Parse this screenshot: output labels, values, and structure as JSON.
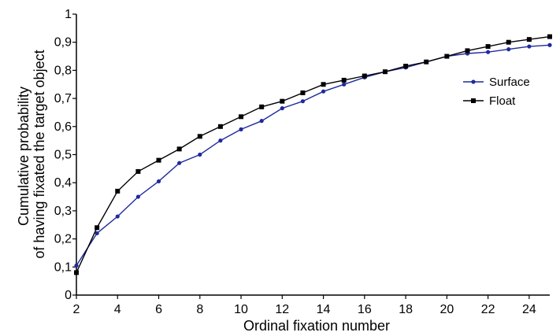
{
  "chart_data": {
    "type": "line",
    "title": "",
    "xlabel": "Ordinal fixation number",
    "ylabel": [
      "Cumulative probability",
      "of having fixated the target object"
    ],
    "x": [
      2,
      3,
      4,
      5,
      6,
      7,
      8,
      9,
      10,
      11,
      12,
      13,
      14,
      15,
      16,
      17,
      18,
      19,
      20,
      21,
      22,
      23,
      24,
      25
    ],
    "xlim": [
      2,
      25
    ],
    "ylim": [
      0,
      1
    ],
    "xticks": [
      "2",
      "4",
      "6",
      "8",
      "10",
      "12",
      "14",
      "16",
      "18",
      "20",
      "22",
      "24"
    ],
    "yticks": [
      "0",
      "0,1",
      "0,2",
      "0,3",
      "0,4",
      "0,5",
      "0,6",
      "0,7",
      "0,8",
      "0,9",
      "1"
    ],
    "grid": false,
    "legend_position": "right",
    "series": [
      {
        "name": "Surface",
        "color": "#1f2a9c",
        "marker": "circle",
        "values": [
          0.105,
          0.22,
          0.28,
          0.35,
          0.405,
          0.47,
          0.5,
          0.55,
          0.59,
          0.62,
          0.665,
          0.69,
          0.725,
          0.75,
          0.775,
          0.795,
          0.81,
          0.83,
          0.85,
          0.86,
          0.865,
          0.875,
          0.885,
          0.89
        ]
      },
      {
        "name": "Float",
        "color": "#000000",
        "marker": "square",
        "values": [
          0.08,
          0.24,
          0.37,
          0.44,
          0.48,
          0.52,
          0.565,
          0.6,
          0.635,
          0.67,
          0.69,
          0.72,
          0.75,
          0.765,
          0.78,
          0.795,
          0.815,
          0.83,
          0.85,
          0.87,
          0.885,
          0.9,
          0.91,
          0.92
        ]
      }
    ]
  }
}
